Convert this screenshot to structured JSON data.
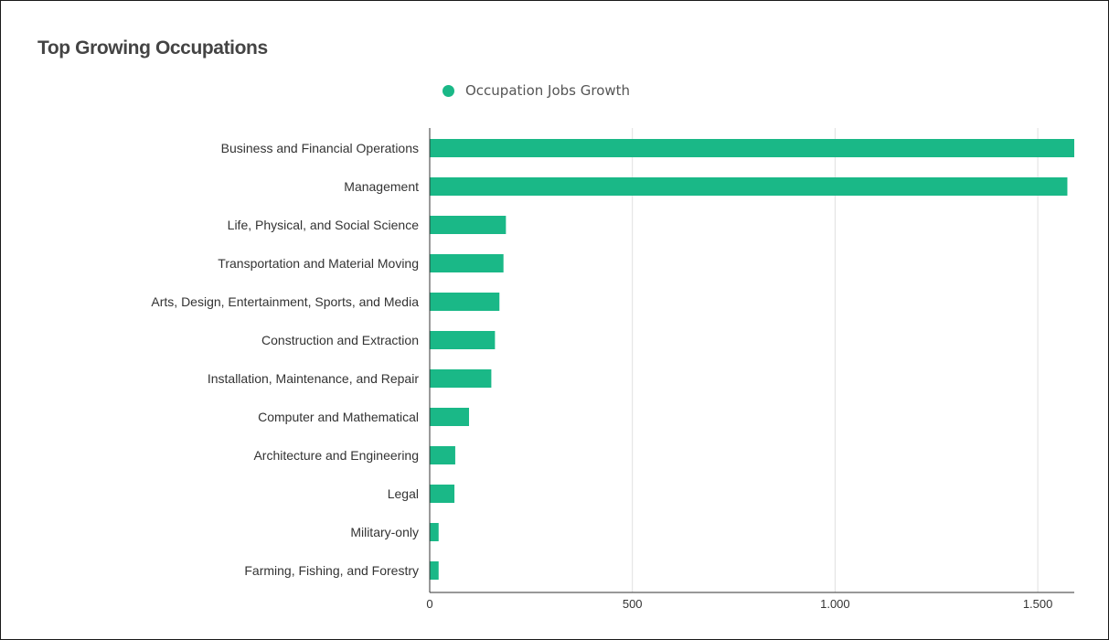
{
  "chart_data": {
    "type": "bar",
    "orientation": "horizontal",
    "title": "Top Growing Occupations",
    "categories": [
      "Business and Financial Operations",
      "Management",
      "Life, Physical, and Social Science",
      "Transportation and Material Moving",
      "Arts, Design, Entertainment, Sports, and Media",
      "Construction and Extraction",
      "Installation, Maintenance, and Repair",
      "Computer and Mathematical",
      "Architecture and Engineering",
      "Legal",
      "Military-only",
      "Farming, Fishing, and Forestry"
    ],
    "series": [
      {
        "name": "Occupation Jobs Growth",
        "color": "#1ab887",
        "values": [
          1590,
          1573,
          188,
          182,
          172,
          161,
          152,
          97,
          63,
          61,
          22,
          22
        ]
      }
    ],
    "xlim": [
      0,
      1590
    ],
    "xticks": [
      0,
      500,
      1000,
      1500
    ],
    "xtick_labels": [
      "0",
      "500",
      "1.000",
      "1.500"
    ],
    "grid": true,
    "legend_position": "top"
  }
}
